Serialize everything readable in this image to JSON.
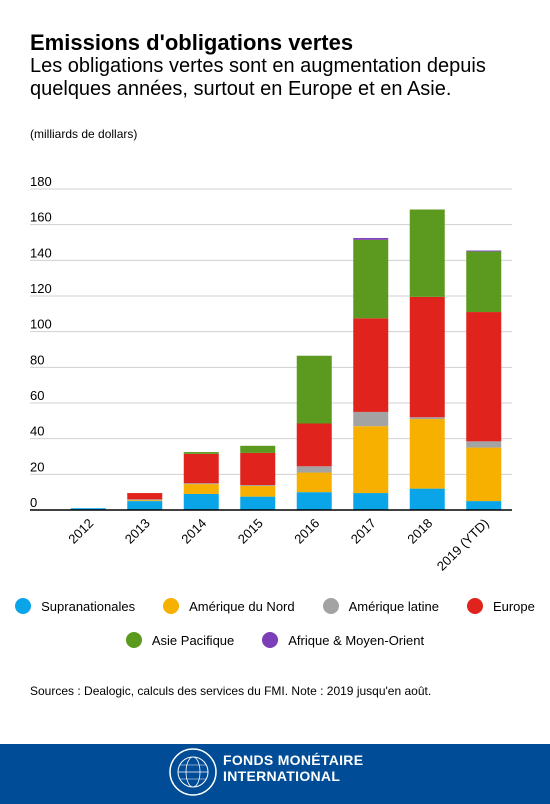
{
  "title": "Emissions d'obligations vertes",
  "subtitle": "Les obligations vertes sont en augmentation depuis quelques années, surtout en Europe et en Asie.",
  "unit_label": "(milliards de dollars)",
  "source": "Sources : Dealogic, calculs des services du FMI. Note : 2019 jusqu'en août.",
  "footer": {
    "org_line1": "FONDS MONÉTAIRE",
    "org_line2": "INTERNATIONAL",
    "seal_text": "FONDS MONÉTAIRE INTERNATIONAL"
  },
  "colors": {
    "supranational": "#0aa5e8",
    "north_america": "#f7b000",
    "latin_america": "#a3a3a3",
    "europe": "#e0231d",
    "asia_pacific": "#5c9a1f",
    "africa_middle_east": "#7d3fb8",
    "footer_bg": "#004c97"
  },
  "chart_data": {
    "type": "bar",
    "stacked": true,
    "title": "Emissions d'obligations vertes",
    "ylabel": "(milliards de dollars)",
    "ylim": [
      0,
      180
    ],
    "yticks": [
      0,
      20,
      40,
      60,
      80,
      100,
      120,
      140,
      160,
      180
    ],
    "grid": true,
    "legend_position": "bottom",
    "categories": [
      "2012",
      "2013",
      "2014",
      "2015",
      "2016",
      "2017",
      "2018",
      "2019 (YTD)"
    ],
    "series": [
      {
        "name": "Supranationales",
        "color": "#0aa5e8",
        "values": [
          1,
          5,
          9,
          7.5,
          10,
          9.5,
          12,
          5
        ]
      },
      {
        "name": "Amérique du Nord",
        "color": "#f7b000",
        "values": [
          0,
          0.5,
          5.5,
          6,
          11,
          37.5,
          39,
          30
        ]
      },
      {
        "name": "Amérique latine",
        "color": "#a3a3a3",
        "values": [
          0,
          0.5,
          0.5,
          0.5,
          3.5,
          8,
          1,
          3.5
        ]
      },
      {
        "name": "Europe",
        "color": "#e0231d",
        "values": [
          0,
          3.5,
          16.5,
          18,
          24,
          52.5,
          67.5,
          72.5
        ]
      },
      {
        "name": "Asie Pacifique",
        "color": "#5c9a1f",
        "values": [
          0,
          0,
          1,
          4,
          38,
          44,
          49,
          34
        ]
      },
      {
        "name": "Afrique & Moyen-Orient",
        "color": "#7d3fb8",
        "values": [
          0,
          0,
          0,
          0,
          0,
          1,
          0,
          0.5
        ]
      }
    ]
  }
}
